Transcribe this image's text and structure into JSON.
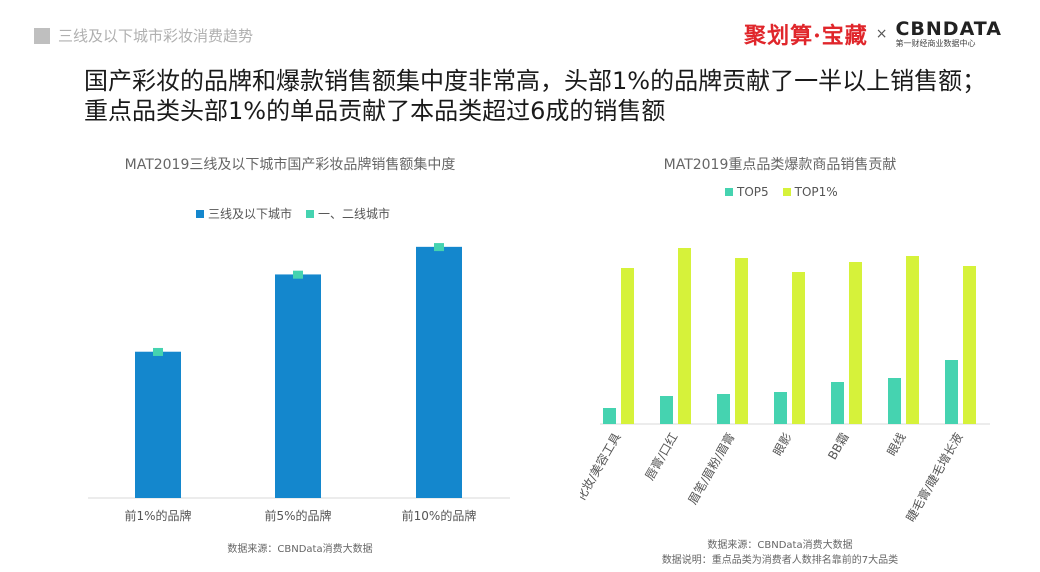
{
  "header": {
    "section_title": "三线及以下城市彩妆消费趋势",
    "brand_primary": "聚划算·宝藏",
    "brand_sep": "×",
    "brand_partner": "CBNDATA",
    "brand_partner_sub": "第一财经商业数据中心"
  },
  "headline": {
    "line1": "国产彩妆的品牌和爆款销售额集中度非常高，头部1%的品牌贡献了一半以上销售额；",
    "line2": "重点品类头部1%的单品贡献了本品类超过6成的销售额"
  },
  "colors": {
    "blue": "#1487cd",
    "teal": "#45d3b0",
    "lime": "#d6f23a"
  },
  "chart_data": [
    {
      "type": "bar",
      "title": "MAT2019三线及以下城市国产彩妆品牌销售额集中度",
      "categories": [
        "前1%的品牌",
        "前5%的品牌",
        "前10%的品牌"
      ],
      "series": [
        {
          "name": "三线及以下城市",
          "values": [
            53,
            81,
            91
          ]
        },
        {
          "name": "一、二线城市",
          "values": [
            54,
            82,
            92
          ]
        }
      ],
      "ylim": [
        0,
        100
      ],
      "source": "数据来源：CBNData消费大数据"
    },
    {
      "type": "bar",
      "title": "MAT2019重点品类爆款商品销售贡献",
      "categories": [
        "化妆/美容工具",
        "唇膏/口红",
        "眉笔/眉粉/眉膏",
        "眼影",
        "BB霜",
        "眼线",
        "睫毛膏/睫毛增长液"
      ],
      "series": [
        {
          "name": "TOP5",
          "values": [
            8,
            14,
            15,
            16,
            21,
            23,
            32
          ]
        },
        {
          "name": "TOP1%",
          "values": [
            78,
            88,
            83,
            76,
            81,
            84,
            79
          ]
        }
      ],
      "ylim": [
        0,
        100
      ],
      "source": "数据来源：CBNData消费大数据",
      "note": "数据说明：重点品类为消费者人数排名靠前的7大品类"
    }
  ]
}
